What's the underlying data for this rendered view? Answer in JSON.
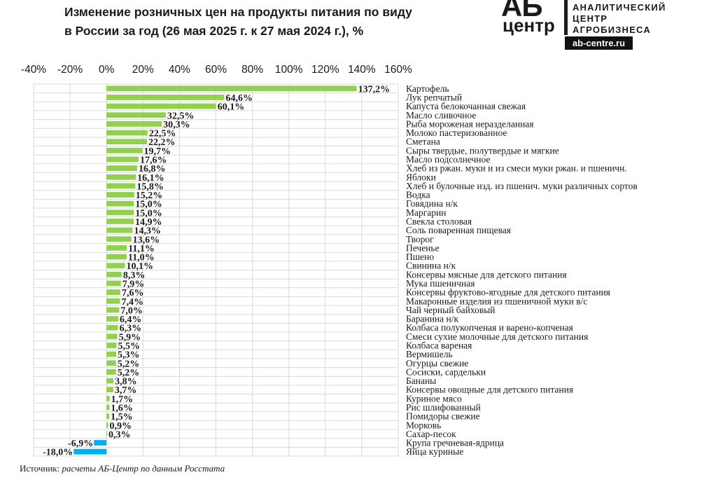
{
  "title": {
    "line1": "Изменение розничных цен на продукты питания по виду",
    "line2": "в России за год (26 мая 2025 г. к 27 мая 2024 г.), %"
  },
  "logo": {
    "mark_top": "АБ",
    "mark_bottom": "центр",
    "line1": "АНАЛИТИЧЕСКИЙ",
    "line2": "ЦЕНТР",
    "line3": "АГРОБИЗНЕСА",
    "url": "ab-centre.ru"
  },
  "source": {
    "label": "Источник:",
    "text": "расчеты АБ-Центр по данным Росстата"
  },
  "colors": {
    "positive": "#92d050",
    "negative": "#00b0f0",
    "grid": "#d9d9d9",
    "text": "#1a1a1a"
  },
  "chart_data": {
    "type": "bar",
    "orientation": "horizontal",
    "xlim": [
      -40,
      160
    ],
    "xticks": [
      "-40%",
      "-20%",
      "0%",
      "20%",
      "40%",
      "60%",
      "80%",
      "100%",
      "120%",
      "140%",
      "160%"
    ],
    "xtick_values": [
      -40,
      -20,
      0,
      20,
      40,
      60,
      80,
      100,
      120,
      140,
      160
    ],
    "grid": true,
    "axis_position": "top",
    "categories": [
      "Картофель",
      "Лук репчатый",
      "Капуста белокочанная свежая",
      "Масло сливочное",
      "Рыба мороженая неразделанная",
      "Молоко пастеризованное",
      "Сметана",
      "Сыры твердые, полутвердые и мягкие",
      "Масло подсолнечное",
      "Хлеб из ржан. муки и из смеси муки ржан. и пшеничн.",
      "Яблоки",
      "Хлеб и булочные изд. из пшенич. муки различных сортов",
      "Водка",
      "Говядина н/к",
      "Маргарин",
      "Свекла столовая",
      "Соль поваренная пищевая",
      "Творог",
      "Печенье",
      "Пшено",
      "Свинина н/к",
      "Консервы мясные для детского питания",
      "Мука пшеничная",
      "Консервы фруктово-ягодные для детского питания",
      "Макаронные изделия из пшеничной муки в/с",
      "Чай черный байховый",
      "Баранина н/к",
      "Колбаса полукопченая и варено-копченая",
      "Смеси сухие молочные для детского питания",
      "Колбаса вареная",
      "Вермишель",
      "Огурцы свежие",
      "Сосиски, сардельки",
      "Бананы",
      "Консервы овощные для детского питания",
      "Куриное мясо",
      "Рис шлифованный",
      "Помидоры свежие",
      "Морковь",
      "Сахар-песок",
      "Крупа гречневая-ядрица",
      "Яйца куриные"
    ],
    "values": [
      137.2,
      64.6,
      60.1,
      32.5,
      30.3,
      22.5,
      22.2,
      19.7,
      17.6,
      16.8,
      16.1,
      15.8,
      15.2,
      15.0,
      15.0,
      14.9,
      14.3,
      13.6,
      11.1,
      11.0,
      10.1,
      8.3,
      7.9,
      7.6,
      7.4,
      7.0,
      6.4,
      6.3,
      5.9,
      5.5,
      5.3,
      5.2,
      5.2,
      3.8,
      3.7,
      1.7,
      1.6,
      1.5,
      0.9,
      0.3,
      -6.9,
      -18.0
    ],
    "labels": [
      "137,2%",
      "64,6%",
      "60,1%",
      "32,5%",
      "30,3%",
      "22,5%",
      "22,2%",
      "19,7%",
      "17,6%",
      "16,8%",
      "16,1%",
      "15,8%",
      "15,2%",
      "15,0%",
      "15,0%",
      "14,9%",
      "14,3%",
      "13,6%",
      "11,1%",
      "11,0%",
      "10,1%",
      "8,3%",
      "7,9%",
      "7,6%",
      "7,4%",
      "7,0%",
      "6,4%",
      "6,3%",
      "5,9%",
      "5,5%",
      "5,3%",
      "5,2%",
      "5,2%",
      "3,8%",
      "3,7%",
      "1,7%",
      "1,6%",
      "1,5%",
      "0,9%",
      "0,3%",
      "-6,9%",
      "-18,0%"
    ]
  }
}
